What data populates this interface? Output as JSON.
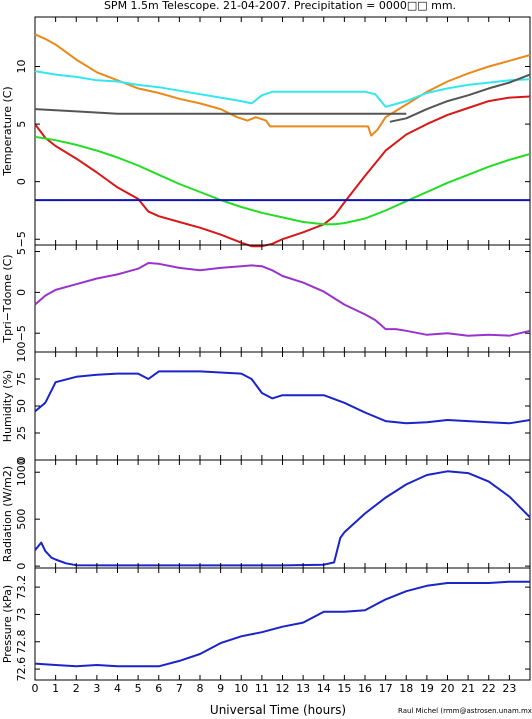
{
  "title": "SPM 1.5m Telescope. 21-04-2007. Precipitation = 0000□□ mm.",
  "credit": "Raul Michel (rmm@astrosen.unam.mx)",
  "xlabel": "Universal Time (hours)",
  "colors": {
    "orange": "#e8891a",
    "cyan": "#33e6f0",
    "gray": "#555555",
    "red": "#d81818",
    "green": "#22dd22",
    "blue": "#1111bb",
    "purple": "#9933cc",
    "navy": "#1a24c8"
  },
  "chart_data": [
    {
      "type": "line",
      "panel": "temperature",
      "ylabel": "Temperature (C)",
      "xlim": [
        0,
        24
      ],
      "ylim": [
        -5.5,
        14.3
      ],
      "ytick_values": [
        -5,
        0,
        5,
        10
      ],
      "ytick_labels": [
        "−5",
        "0",
        "5",
        "10"
      ],
      "series": [
        {
          "color": "orange",
          "x": [
            0,
            0.5,
            1,
            2,
            3,
            4,
            5,
            6,
            7,
            8,
            9,
            9.8,
            10.3,
            10.7,
            11.2,
            11.4,
            12,
            13,
            14,
            15,
            16,
            16.15,
            16.3,
            16.6,
            17,
            18,
            19,
            20,
            21,
            22,
            23,
            24
          ],
          "y": [
            12.8,
            12.4,
            11.9,
            10.6,
            9.5,
            8.8,
            8.1,
            7.7,
            7.2,
            6.8,
            6.3,
            5.6,
            5.3,
            5.6,
            5.3,
            4.8,
            4.8,
            4.8,
            4.8,
            4.8,
            4.8,
            4.8,
            4.0,
            4.5,
            5.6,
            6.7,
            7.8,
            8.7,
            9.4,
            10.0,
            10.5,
            11.0
          ]
        },
        {
          "color": "cyan",
          "x": [
            0,
            1,
            2,
            3,
            4,
            5,
            6,
            7,
            8,
            9,
            10,
            10.5,
            11,
            11.5,
            12,
            13,
            14,
            15,
            16,
            16.5,
            17,
            18,
            19,
            20,
            21,
            22,
            23,
            24
          ],
          "y": [
            9.6,
            9.3,
            9.1,
            8.8,
            8.7,
            8.4,
            8.2,
            7.9,
            7.6,
            7.3,
            7.0,
            6.8,
            7.5,
            7.8,
            7.8,
            7.8,
            7.8,
            7.8,
            7.8,
            7.6,
            6.5,
            7.0,
            7.7,
            8.1,
            8.4,
            8.6,
            8.8,
            8.9
          ]
        },
        {
          "color": "gray",
          "x": [
            0,
            2,
            4,
            6,
            8,
            10,
            12,
            14,
            16,
            18
          ],
          "y": [
            6.3,
            6.1,
            5.9,
            5.9,
            5.9,
            5.9,
            5.9,
            5.9,
            5.9,
            5.9
          ]
        },
        {
          "color": "gray",
          "x": [
            17.2,
            18,
            19,
            20,
            21,
            22,
            23,
            24
          ],
          "y": [
            5.2,
            5.5,
            6.3,
            7.0,
            7.5,
            8.1,
            8.6,
            9.3
          ]
        },
        {
          "color": "red",
          "x": [
            0,
            0.5,
            1,
            2,
            3,
            4,
            5,
            5.5,
            6,
            7,
            8,
            9,
            10,
            10.5,
            11,
            11.5,
            12,
            13,
            14,
            14.5,
            15,
            16,
            17,
            18,
            19,
            20,
            21,
            22,
            23,
            24
          ],
          "y": [
            5.0,
            3.8,
            3.1,
            2.0,
            0.8,
            -0.5,
            -1.5,
            -2.6,
            -3.0,
            -3.5,
            -4.0,
            -4.6,
            -5.3,
            -5.6,
            -5.6,
            -5.4,
            -5.0,
            -4.4,
            -3.7,
            -3.0,
            -1.8,
            0.5,
            2.7,
            4.1,
            5.0,
            5.8,
            6.4,
            7.0,
            7.3,
            7.4
          ]
        },
        {
          "color": "green",
          "x": [
            0,
            1,
            2,
            3,
            4,
            5,
            6,
            7,
            8,
            9,
            10,
            11,
            12,
            13,
            14,
            14.5,
            15,
            16,
            17,
            18,
            19,
            20,
            21,
            22,
            23,
            24
          ],
          "y": [
            3.9,
            3.6,
            3.2,
            2.7,
            2.1,
            1.4,
            0.6,
            -0.2,
            -0.9,
            -1.6,
            -2.2,
            -2.7,
            -3.1,
            -3.5,
            -3.7,
            -3.7,
            -3.6,
            -3.2,
            -2.5,
            -1.7,
            -0.9,
            -0.1,
            0.6,
            1.3,
            1.9,
            2.4
          ]
        },
        {
          "color": "blue",
          "x": [
            0,
            24
          ],
          "y": [
            -1.6,
            -1.6
          ]
        }
      ]
    },
    {
      "type": "line",
      "panel": "tdiff",
      "ylabel": "Tpri−Tdome (C)",
      "xlim": [
        0,
        24
      ],
      "ylim": [
        -7.3,
        5.8
      ],
      "ytick_values": [
        -5,
        0,
        5
      ],
      "ytick_labels": [
        "−5",
        "0",
        "5"
      ],
      "series": [
        {
          "color": "purple",
          "x": [
            0,
            0.5,
            1,
            2,
            3,
            4,
            5,
            5.5,
            6,
            7,
            8,
            9,
            10,
            10.5,
            11,
            11.5,
            12,
            13,
            14,
            15,
            16,
            16.5,
            17,
            17.5,
            18,
            19,
            20,
            21,
            22,
            23,
            24
          ],
          "y": [
            -1.5,
            -0.4,
            0.3,
            1.0,
            1.7,
            2.2,
            2.9,
            3.6,
            3.5,
            3.0,
            2.7,
            3.0,
            3.2,
            3.3,
            3.2,
            2.7,
            2.0,
            1.2,
            0.1,
            -1.5,
            -2.7,
            -3.4,
            -4.5,
            -4.5,
            -4.7,
            -5.2,
            -5.0,
            -5.3,
            -5.2,
            -5.3,
            -4.7
          ]
        }
      ]
    },
    {
      "type": "line",
      "panel": "humidity",
      "ylabel": "Humidity (%)",
      "xlim": [
        0,
        24
      ],
      "ylim": [
        0,
        100
      ],
      "ytick_values": [
        0,
        25,
        50,
        75,
        100
      ],
      "ytick_labels": [
        "0",
        "25",
        "50",
        "75",
        "100"
      ],
      "series": [
        {
          "color": "navy",
          "x": [
            0,
            0.5,
            1,
            2,
            3,
            4,
            5,
            5.5,
            6,
            7,
            8,
            9,
            10,
            10.5,
            11,
            11.5,
            12,
            13,
            14,
            15,
            16,
            17,
            18,
            19,
            20,
            21,
            22,
            23,
            24
          ],
          "y": [
            45,
            53,
            72,
            77,
            79,
            80,
            80,
            75,
            82,
            82,
            82,
            81,
            80,
            75,
            62,
            57,
            60,
            60,
            60,
            53,
            44,
            36,
            34,
            35,
            37,
            36,
            35,
            34,
            37
          ]
        }
      ]
    },
    {
      "type": "line",
      "panel": "radiation",
      "ylabel": "Radiation (W/m2)",
      "xlim": [
        0,
        24
      ],
      "ylim": [
        -20,
        1130
      ],
      "ytick_values": [
        0,
        500,
        1000
      ],
      "ytick_labels": [
        "0",
        "500",
        "1000"
      ],
      "series": [
        {
          "color": "navy",
          "x": [
            0,
            0.3,
            0.5,
            0.8,
            1,
            1.5,
            2,
            4,
            6,
            8,
            10,
            12,
            14,
            14.5,
            14.8,
            15,
            16,
            17,
            18,
            19,
            20,
            21,
            22,
            23,
            24
          ],
          "y": [
            170,
            250,
            160,
            90,
            70,
            30,
            10,
            8,
            8,
            8,
            8,
            8,
            15,
            40,
            300,
            360,
            560,
            730,
            870,
            970,
            1010,
            990,
            900,
            740,
            520
          ]
        }
      ]
    },
    {
      "type": "line",
      "panel": "pressure",
      "ylabel": "Pressure (kPa)",
      "xlim": [
        0,
        24
      ],
      "ylim": [
        72.52,
        73.34
      ],
      "ytick_values": [
        72.6,
        72.8,
        73,
        73.2
      ],
      "ytick_labels": [
        "72.6",
        "72.8",
        "73",
        "73.2"
      ],
      "series": [
        {
          "color": "navy",
          "x": [
            0,
            1,
            2,
            3,
            4,
            5,
            6,
            7,
            8,
            9,
            10,
            11,
            12,
            13,
            14,
            15,
            16,
            17,
            18,
            19,
            20,
            21,
            22,
            23,
            24
          ],
          "y": [
            72.64,
            72.63,
            72.62,
            72.63,
            72.62,
            72.62,
            72.62,
            72.66,
            72.71,
            72.79,
            72.84,
            72.87,
            72.91,
            72.94,
            73.02,
            73.02,
            73.03,
            73.11,
            73.17,
            73.21,
            73.23,
            73.23,
            73.23,
            73.24,
            73.24
          ]
        }
      ]
    }
  ]
}
